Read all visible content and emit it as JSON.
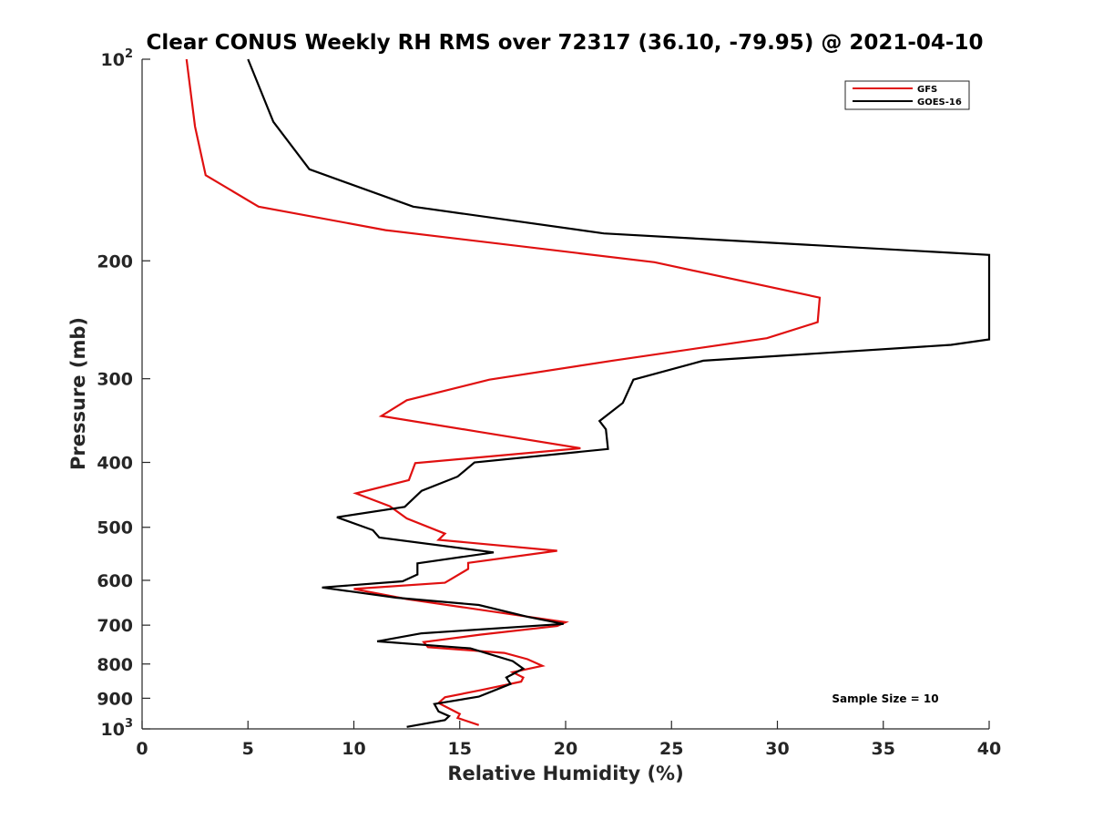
{
  "chart_data": {
    "type": "line",
    "title": "Clear CONUS Weekly RH RMS over 72317 (36.10, -79.95) @ 2021-04-10",
    "xlabel": "Relative Humidity (%)",
    "ylabel": "Pressure (mb)",
    "xlim": [
      0,
      40
    ],
    "ylim": [
      100,
      1000
    ],
    "y_scale": "log",
    "y_reversed": true,
    "grid": false,
    "legend_position": "top-right",
    "x_ticks": [
      0,
      5,
      10,
      15,
      20,
      25,
      30,
      35,
      40
    ],
    "y_ticks": [
      {
        "value": 100,
        "base": "10",
        "exp": "2"
      },
      {
        "value": 200,
        "label": "200"
      },
      {
        "value": 300,
        "label": "300"
      },
      {
        "value": 400,
        "label": "400"
      },
      {
        "value": 500,
        "label": "500"
      },
      {
        "value": 600,
        "label": "600"
      },
      {
        "value": 700,
        "label": "700"
      },
      {
        "value": 800,
        "label": "800"
      },
      {
        "value": 900,
        "label": "900"
      },
      {
        "value": 1000,
        "base": "10",
        "exp": "3"
      }
    ],
    "annotation": "Sample Size = 10",
    "series": [
      {
        "name": "GFS",
        "color": "#e01010",
        "points": [
          [
            15.9,
            987
          ],
          [
            14.9,
            963
          ],
          [
            15.0,
            950
          ],
          [
            14.0,
            915
          ],
          [
            14.3,
            897
          ],
          [
            16.0,
            875
          ],
          [
            17.9,
            850
          ],
          [
            18.0,
            838
          ],
          [
            17.5,
            823
          ],
          [
            18.9,
            805
          ],
          [
            18.2,
            787
          ],
          [
            17.1,
            770
          ],
          [
            13.5,
            755
          ],
          [
            13.3,
            742
          ],
          [
            16.0,
            723
          ],
          [
            19.6,
            702
          ],
          [
            20.0,
            693
          ],
          [
            12.5,
            640
          ],
          [
            10.0,
            618
          ],
          [
            14.3,
            605
          ],
          [
            15.4,
            577
          ],
          [
            15.4,
            565
          ],
          [
            19.6,
            542
          ],
          [
            14.0,
            522
          ],
          [
            14.3,
            511
          ],
          [
            12.5,
            485
          ],
          [
            11.7,
            465
          ],
          [
            10.1,
            445
          ],
          [
            12.6,
            425
          ],
          [
            12.9,
            401
          ],
          [
            20.7,
            381
          ],
          [
            15.9,
            360
          ],
          [
            11.3,
            341
          ],
          [
            12.5,
            323
          ],
          [
            16.4,
            301
          ],
          [
            22.2,
            282
          ],
          [
            29.5,
            261
          ],
          [
            31.9,
            247
          ],
          [
            32.0,
            227
          ],
          [
            24.2,
            201
          ],
          [
            11.5,
            180
          ],
          [
            5.5,
            166
          ],
          [
            3.0,
            149
          ],
          [
            2.5,
            126
          ],
          [
            2.1,
            100
          ]
        ]
      },
      {
        "name": "GOES-16",
        "color": "#000000",
        "points": [
          [
            12.5,
            993
          ],
          [
            14.3,
            970
          ],
          [
            14.5,
            957
          ],
          [
            14.0,
            942
          ],
          [
            13.8,
            918
          ],
          [
            15.9,
            895
          ],
          [
            17.4,
            857
          ],
          [
            17.2,
            838
          ],
          [
            18.0,
            813
          ],
          [
            17.5,
            792
          ],
          [
            15.5,
            758
          ],
          [
            11.1,
            740
          ],
          [
            13.2,
            720
          ],
          [
            19.9,
            697
          ],
          [
            18.2,
            680
          ],
          [
            15.9,
            653
          ],
          [
            12.0,
            637
          ],
          [
            8.5,
            615
          ],
          [
            12.3,
            602
          ],
          [
            13.0,
            588
          ],
          [
            13.0,
            566
          ],
          [
            16.6,
            545
          ],
          [
            11.2,
            518
          ],
          [
            10.9,
            505
          ],
          [
            9.2,
            483
          ],
          [
            12.4,
            466
          ],
          [
            13.2,
            441
          ],
          [
            14.9,
            420
          ],
          [
            15.7,
            400
          ],
          [
            22.0,
            382
          ],
          [
            21.9,
            357
          ],
          [
            21.6,
            347
          ],
          [
            22.7,
            326
          ],
          [
            23.2,
            301
          ],
          [
            26.5,
            282
          ],
          [
            38.2,
            267
          ],
          [
            40.0,
            262
          ],
          [
            40.0,
            196
          ],
          [
            21.8,
            182
          ],
          [
            12.8,
            166
          ],
          [
            7.9,
            146
          ],
          [
            6.2,
            124
          ],
          [
            5.0,
            100
          ]
        ]
      }
    ]
  }
}
